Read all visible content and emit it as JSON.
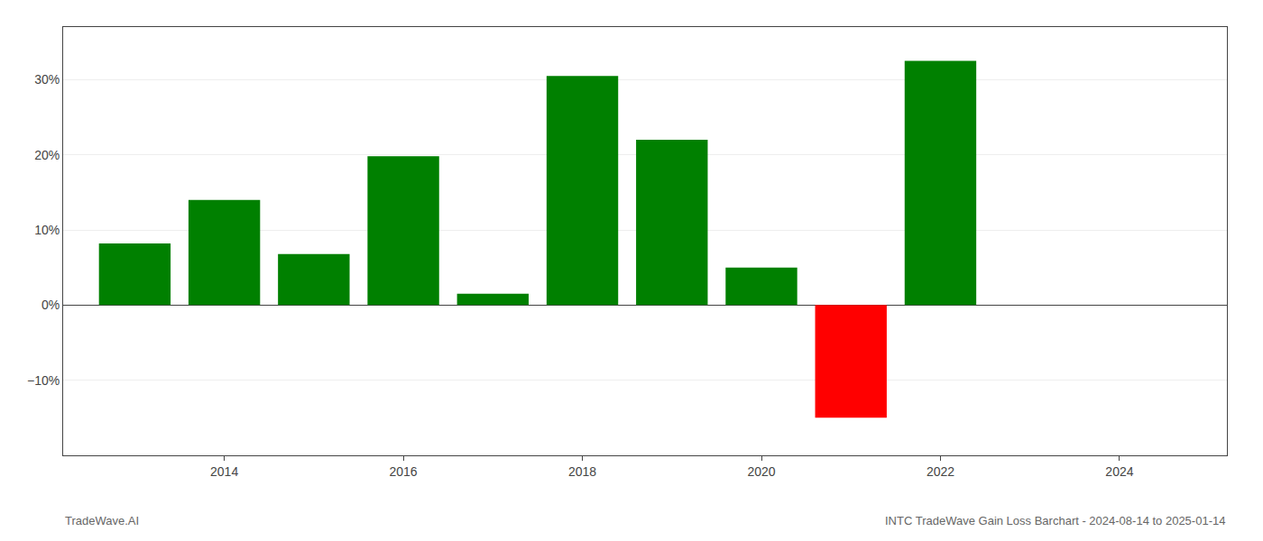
{
  "chart_data": {
    "type": "bar",
    "x": [
      2013,
      2014,
      2015,
      2016,
      2017,
      2018,
      2019,
      2020,
      2021,
      2022,
      2023
    ],
    "values": [
      8.2,
      14.0,
      6.8,
      19.8,
      1.5,
      30.5,
      22.0,
      5.0,
      -15.0,
      32.5,
      0.0
    ],
    "colors": [
      "#008000",
      "#008000",
      "#008000",
      "#008000",
      "#008000",
      "#008000",
      "#008000",
      "#008000",
      "#ff0000",
      "#008000",
      "#008000"
    ],
    "xlim": [
      2012.2,
      2025.2
    ],
    "xticks": [
      2014,
      2016,
      2018,
      2020,
      2022,
      2024
    ],
    "ylim": [
      -20,
      37
    ],
    "yticks": [
      {
        "value": -10,
        "label": "−10%"
      },
      {
        "value": 0,
        "label": "0%"
      },
      {
        "value": 10,
        "label": "10%"
      },
      {
        "value": 20,
        "label": "20%"
      },
      {
        "value": 30,
        "label": "30%"
      }
    ],
    "grid": true,
    "annotations": [
      "TradeWave.AI",
      "INTC TradeWave Gain Loss Barchart - 2024-08-14 to 2025-01-14"
    ]
  }
}
